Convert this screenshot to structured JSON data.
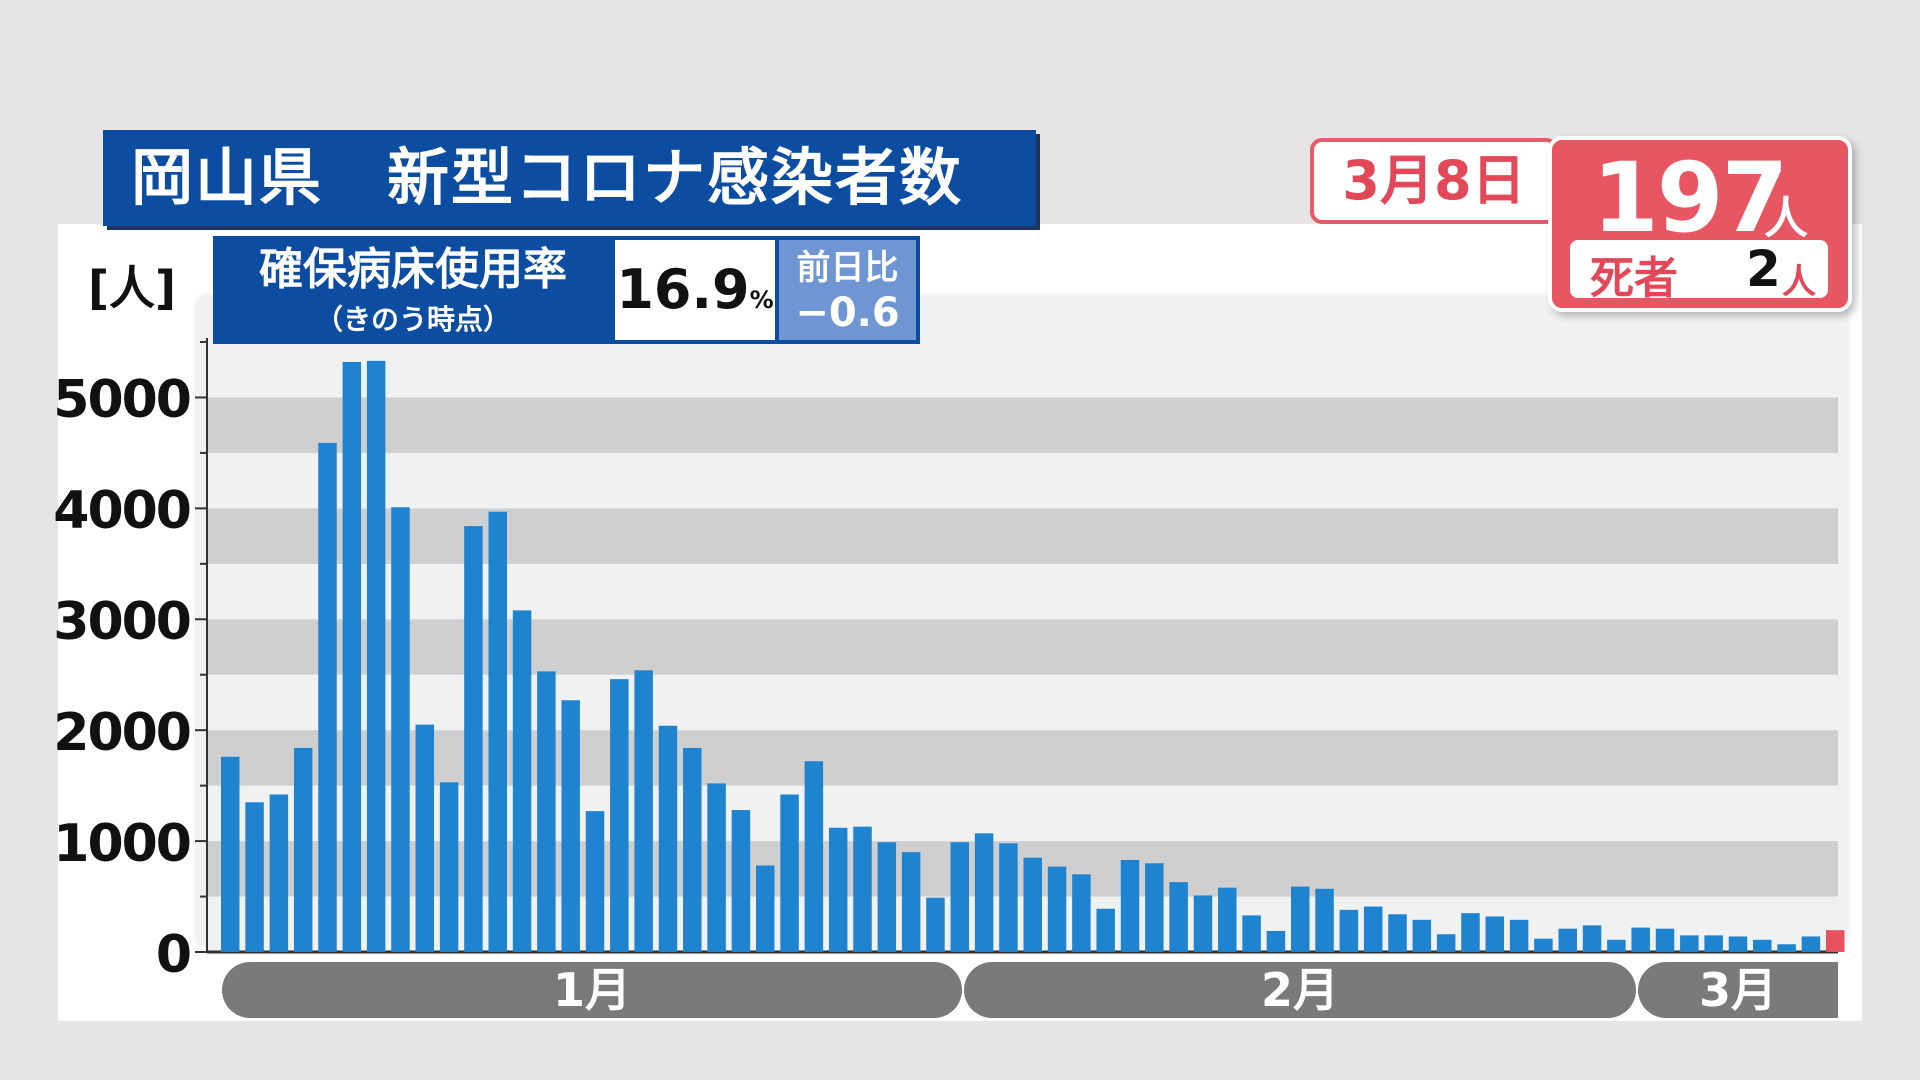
{
  "header": {
    "title": "岡山県　新型コロナ感染者数",
    "date": "3月8日",
    "count": "197",
    "count_unit": "人",
    "death_label": "死者",
    "death_count": "2",
    "death_unit": "人"
  },
  "bed": {
    "label": "確保病床使用率",
    "sublabel": "（きのう時点）",
    "value": "16.9",
    "value_unit": "%",
    "diff_label": "前日比",
    "diff_value": "−0.6"
  },
  "colors": {
    "title_bg": "#0c4da2",
    "bar": "#1f83d0",
    "bar_today": "#e8525e",
    "accent_red": "#e85563"
  },
  "chart_data": {
    "type": "bar",
    "ylabel": "[人]",
    "ylim": [
      0,
      5500
    ],
    "yticks": [
      "0",
      "1000",
      "2000",
      "3000",
      "4000",
      "5000"
    ],
    "months": [
      "1月",
      "2月",
      "3月"
    ],
    "values": [
      1760,
      1350,
      1420,
      1840,
      4590,
      5320,
      5330,
      4010,
      2050,
      1530,
      3840,
      3970,
      3080,
      2530,
      2270,
      1270,
      2460,
      2540,
      2040,
      1840,
      1520,
      1280,
      780,
      1420,
      1720,
      1120,
      1130,
      990,
      900,
      490,
      990,
      1070,
      980,
      850,
      770,
      700,
      390,
      830,
      800,
      630,
      510,
      580,
      330,
      190,
      590,
      570,
      380,
      410,
      340,
      290,
      160,
      350,
      320,
      290,
      120,
      210,
      240,
      110,
      220,
      210,
      150,
      150,
      140,
      110,
      70,
      140,
      197
    ],
    "highlight_last": true
  }
}
